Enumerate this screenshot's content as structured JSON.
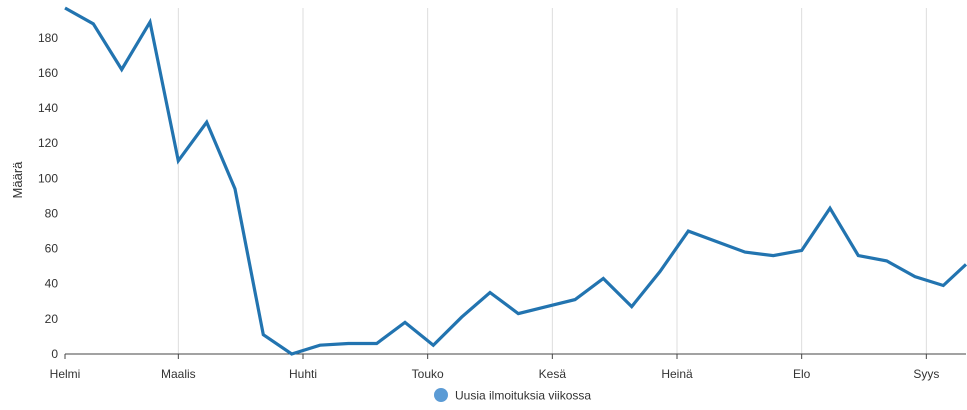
{
  "chart_data": {
    "type": "line",
    "title": "",
    "xlabel": "",
    "ylabel": "Määrä",
    "ylim": [
      0,
      197
    ],
    "yticks": [
      0,
      20,
      40,
      60,
      80,
      100,
      120,
      140,
      160,
      180
    ],
    "grid": "vertical",
    "legend_position": "bottom",
    "month_labels": [
      {
        "label": "Helmi",
        "x": 0
      },
      {
        "label": "Maalis",
        "x": 4
      },
      {
        "label": "Huhti",
        "x": 8.4
      },
      {
        "label": "Touko",
        "x": 12.8
      },
      {
        "label": "Kesä",
        "x": 17.2
      },
      {
        "label": "Heinä",
        "x": 21.6
      },
      {
        "label": "Elo",
        "x": 26
      },
      {
        "label": "Syys",
        "x": 30.4
      }
    ],
    "xlim": [
      0,
      31.8
    ],
    "series": [
      {
        "name": "Uusia ilmoituksia viikossa",
        "color": "#2274b0",
        "marker_color": "#5b9bd5",
        "x": [
          0,
          1,
          2,
          3,
          4,
          5,
          6,
          7,
          8,
          9,
          10,
          11,
          12,
          13,
          14,
          15,
          16,
          17,
          18,
          19,
          20,
          21,
          22,
          23,
          24,
          25,
          26,
          27,
          28,
          29,
          30,
          31,
          31.8
        ],
        "values": [
          197,
          188,
          162,
          189,
          110,
          132,
          94,
          11,
          0,
          5,
          6,
          6,
          18,
          5,
          21,
          35,
          23,
          27,
          31,
          43,
          27,
          47,
          70,
          64,
          58,
          56,
          59,
          83,
          56,
          53,
          44,
          39,
          51
        ]
      }
    ]
  }
}
